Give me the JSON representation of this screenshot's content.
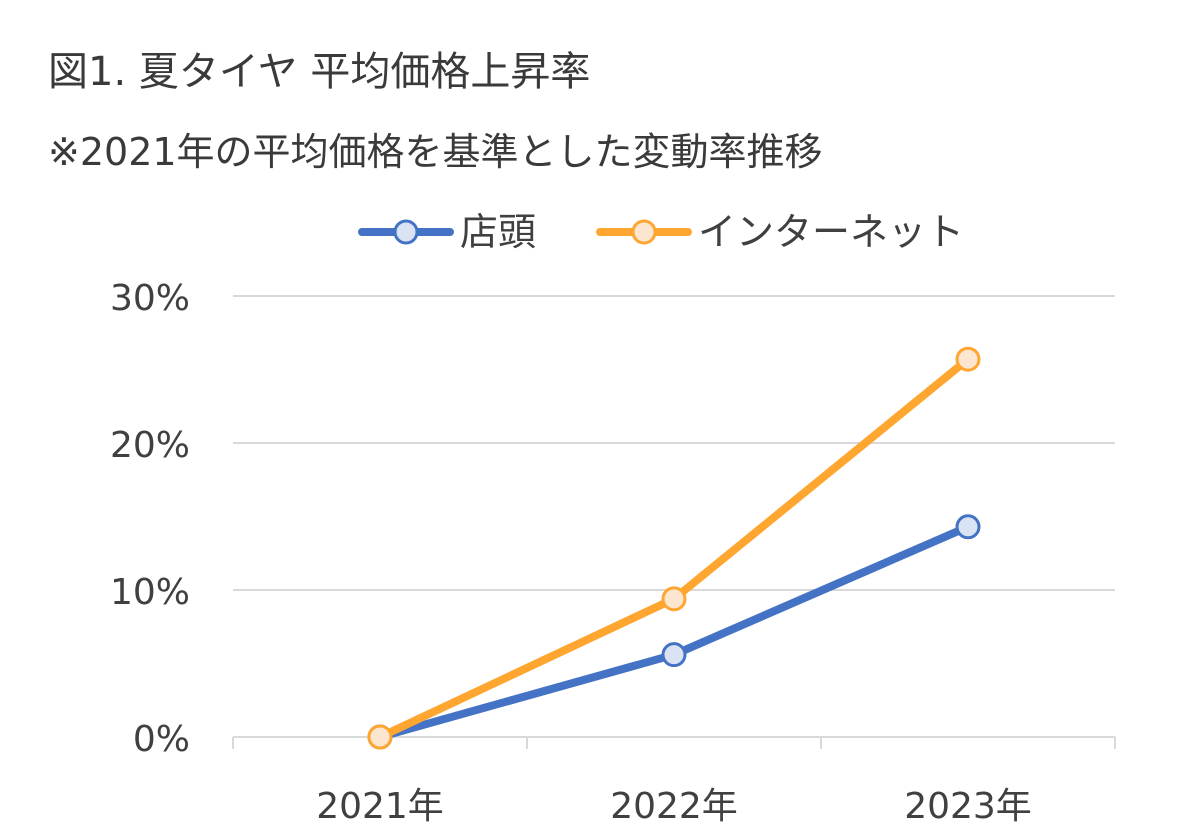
{
  "chart_data": {
    "type": "line",
    "title": "図1. 夏タイヤ 平均価格上昇率",
    "subtitle": "※2021年の平均価格を基準とした変動率推移",
    "categories": [
      "2021年",
      "2022年",
      "2023年"
    ],
    "series": [
      {
        "name": "店頭",
        "values": [
          0,
          5.6,
          14.3
        ],
        "color": "#4472c4",
        "marker_fill": "#dae3f3"
      },
      {
        "name": "インターネット",
        "values": [
          0,
          9.4,
          25.7
        ],
        "color": "#ffa630",
        "marker_fill": "#fde6cf"
      }
    ],
    "y_ticks": [
      "0%",
      "10%",
      "20%",
      "30%"
    ],
    "ylim": [
      0,
      30
    ],
    "grid": true,
    "grid_color": "#d9d9d9",
    "legend_position": "top"
  }
}
